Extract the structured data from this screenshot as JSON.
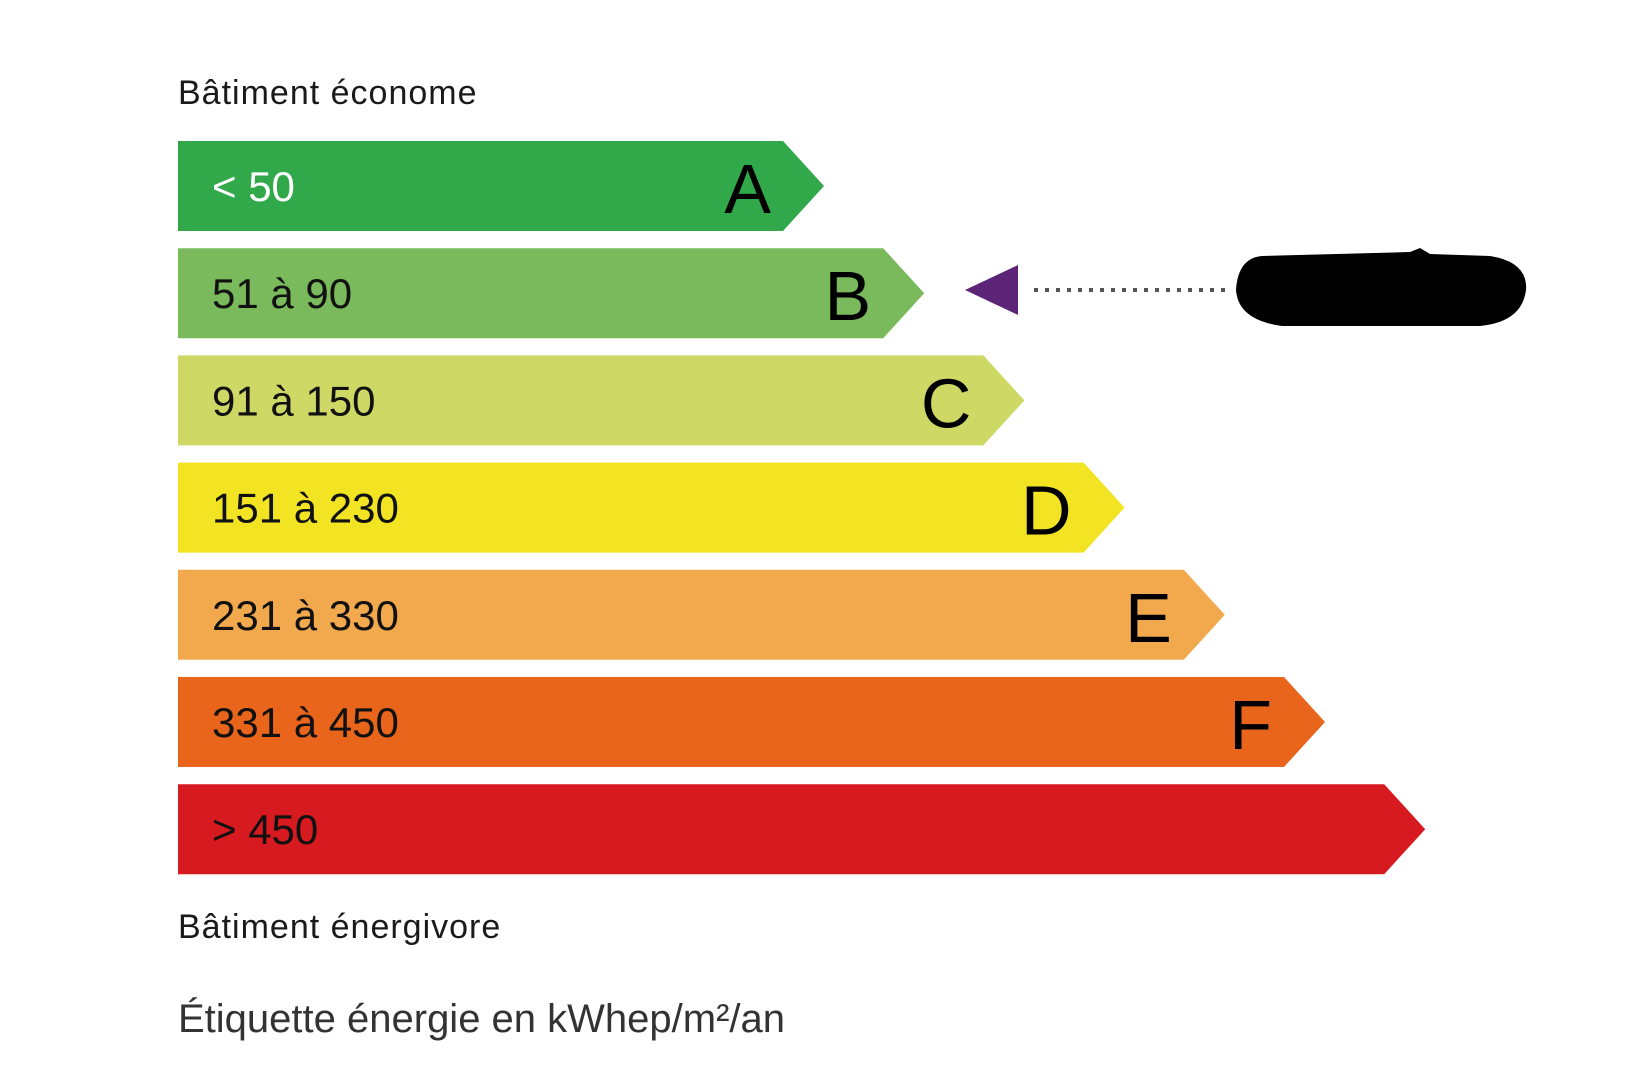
{
  "header_top": "Bâtiment économe",
  "header_bottom": "Bâtiment énergivore",
  "footer": "Étiquette énergie en kWhep/m²/an",
  "classes": [
    {
      "letter": "A",
      "range": "< 50",
      "color": "#31a84a",
      "text_color": "#ffffff"
    },
    {
      "letter": "B",
      "range": "51 à 90",
      "color": "#7aba5c",
      "text_color": "#111111"
    },
    {
      "letter": "C",
      "range": "91 à 150",
      "color": "#cdd964",
      "text_color": "#111111"
    },
    {
      "letter": "D",
      "range": "151 à 230",
      "color": "#f3e423",
      "text_color": "#111111"
    },
    {
      "letter": "E",
      "range": "231 à 330",
      "color": "#f2a94e",
      "text_color": "#111111"
    },
    {
      "letter": "F",
      "range": "331 à 450",
      "color": "#e8651b",
      "text_color": "#111111"
    },
    {
      "letter": "",
      "range": "> 450",
      "color": "#d71920",
      "text_color": "#111111"
    }
  ],
  "indicator": {
    "class": "B",
    "color": "#5b2477",
    "value_redacted": true
  }
}
